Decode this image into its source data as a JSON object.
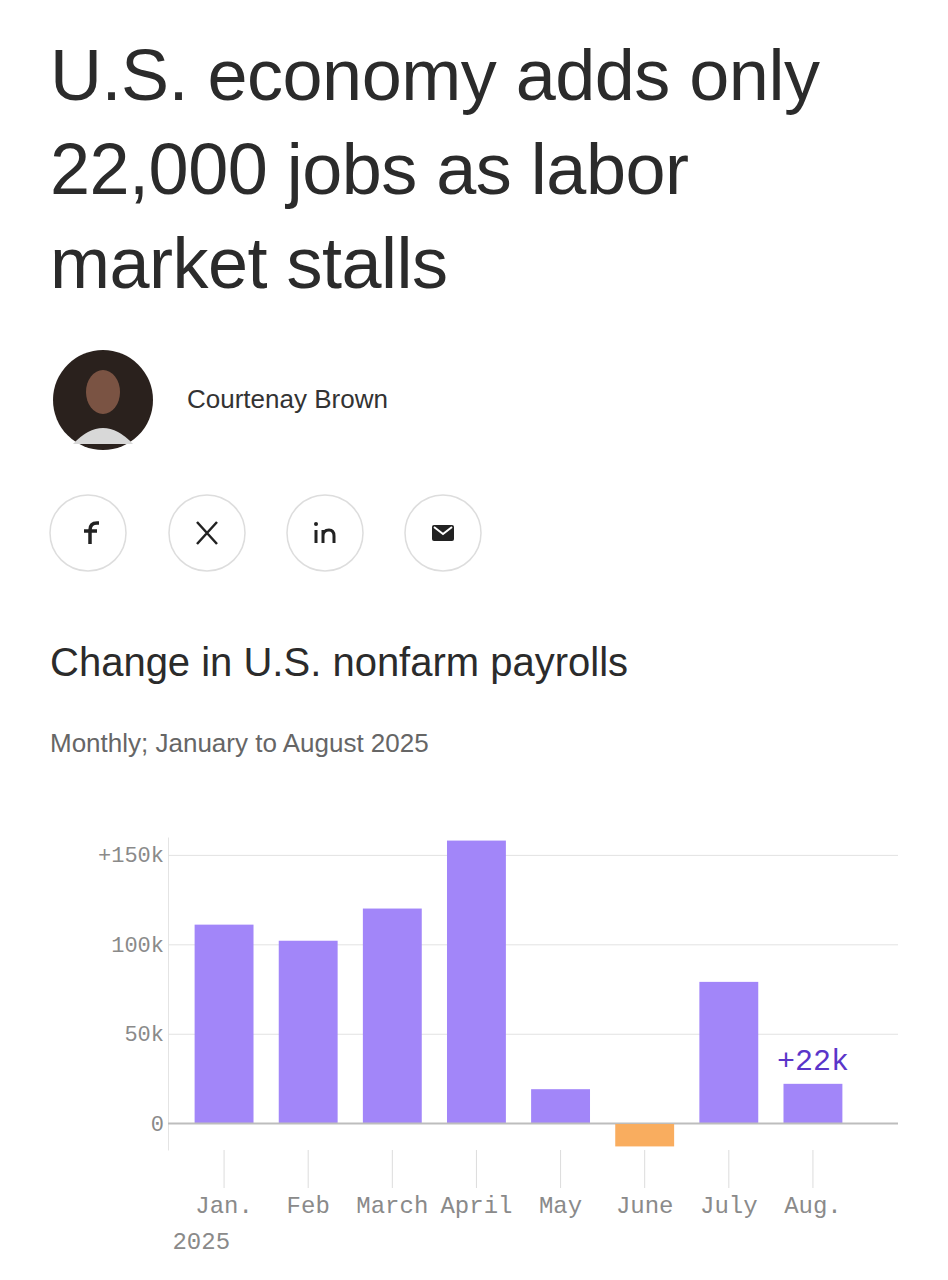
{
  "article": {
    "headline": "U.S. economy adds only 22,000 jobs as labor market stalls",
    "author": "Courtenay Brown"
  },
  "chart_data": {
    "type": "bar",
    "title": "Change in U.S. nonfarm payrolls",
    "subtitle": "Monthly; January to August 2025",
    "categories": [
      "Jan.\n2025",
      "Feb",
      "March",
      "April",
      "May",
      "June",
      "July",
      "Aug."
    ],
    "values": [
      111,
      102,
      120,
      158,
      19,
      -13,
      79,
      22
    ],
    "value_labels": [
      null,
      null,
      null,
      null,
      null,
      null,
      null,
      "+22k"
    ],
    "data_labels": true,
    "colors": [
      "#a286f9",
      "#a286f9",
      "#a286f9",
      "#a286f9",
      "#a286f9",
      "#f9ad5f",
      "#a286f9",
      "#a286f9"
    ],
    "ylim": [
      -15,
      160
    ],
    "yticks": [
      {
        "value": 0,
        "label": "0"
      },
      {
        "value": 50,
        "label": "50k"
      },
      {
        "value": 100,
        "label": "100k"
      },
      {
        "value": 150,
        "label": "+150k"
      }
    ],
    "grid": true
  }
}
